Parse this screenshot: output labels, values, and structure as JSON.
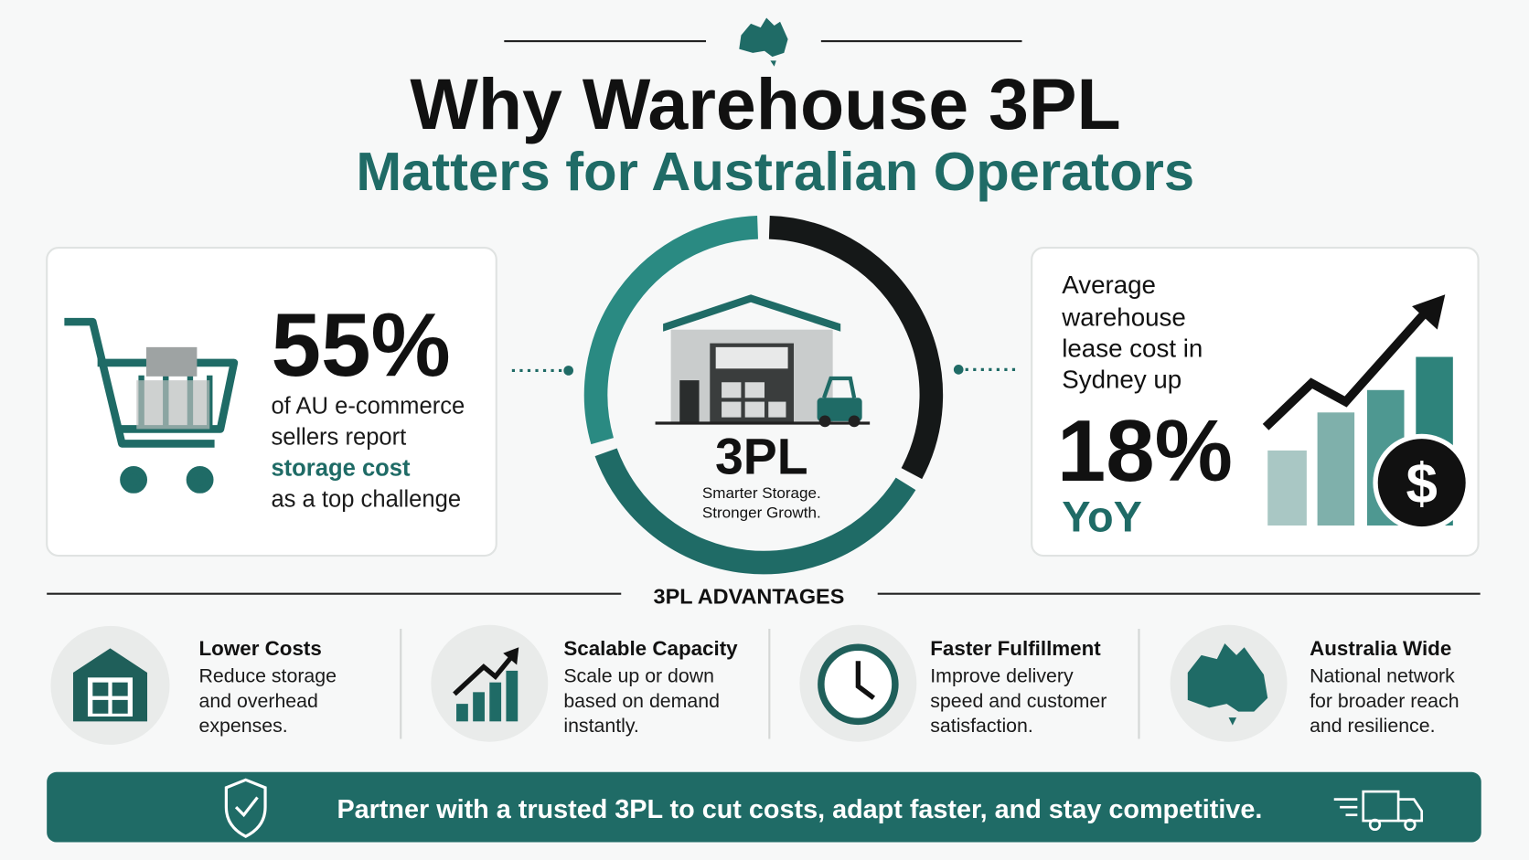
{
  "header": {
    "title": "Why Warehouse 3PL",
    "subtitle": "Matters for Australian Operators"
  },
  "left_card": {
    "stat": "55%",
    "lines": [
      "of AU e-commerce",
      "sellers report",
      "storage cost",
      "as a top challenge"
    ]
  },
  "center": {
    "label": "3PL",
    "tagline": [
      "Smarter Storage.",
      "Stronger Growth."
    ]
  },
  "right_card": {
    "lines": [
      "Average",
      "warehouse",
      "lease cost in",
      "Sydney up"
    ],
    "stat": "18%",
    "suffix": "YoY"
  },
  "advantages": {
    "heading": "3PL ADVANTAGES",
    "items": [
      {
        "title": "Lower Costs",
        "lines": [
          "Reduce storage",
          "and overhead",
          "expenses."
        ]
      },
      {
        "title": "Scalable Capacity",
        "lines": [
          "Scale up or down",
          "based on demand",
          "instantly."
        ]
      },
      {
        "title": "Faster Fulfillment",
        "lines": [
          "Improve delivery",
          "speed and customer",
          "satisfaction."
        ]
      },
      {
        "title": "Australia Wide",
        "lines": [
          "National network",
          "for broader reach",
          "and resilience."
        ]
      }
    ]
  },
  "banner": {
    "text": "Partner with a trusted 3PL to cut costs, adapt faster, and stay competitive."
  }
}
